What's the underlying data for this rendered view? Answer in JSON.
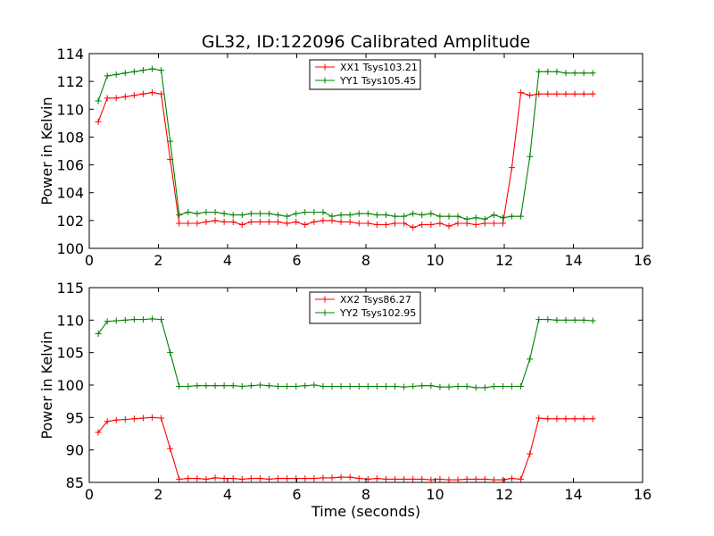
{
  "figure": {
    "title": "GL32, ID:122096 Calibrated Amplitude"
  },
  "chart_data": [
    {
      "type": "line",
      "title": "GL32, ID:122096 Calibrated Amplitude",
      "xlabel": "",
      "ylabel": "Power in Kelvin",
      "xlim": [
        0,
        16
      ],
      "ylim": [
        100,
        114
      ],
      "xticks": [
        "0",
        "2",
        "4",
        "6",
        "8",
        "10",
        "12",
        "14",
        "16"
      ],
      "yticks": [
        "100",
        "102",
        "104",
        "106",
        "108",
        "110",
        "112",
        "114"
      ],
      "grid": false,
      "legend_position": "top-center",
      "x": [
        0.26,
        0.52,
        0.78,
        1.04,
        1.3,
        1.56,
        1.82,
        2.08,
        2.34,
        2.6,
        2.86,
        3.12,
        3.38,
        3.64,
        3.9,
        4.16,
        4.42,
        4.68,
        4.94,
        5.2,
        5.46,
        5.72,
        5.98,
        6.24,
        6.5,
        6.76,
        7.02,
        7.28,
        7.54,
        7.8,
        8.06,
        8.32,
        8.58,
        8.84,
        9.1,
        9.36,
        9.62,
        9.88,
        10.14,
        10.4,
        10.66,
        10.92,
        11.18,
        11.44,
        11.7,
        11.96,
        12.22,
        12.48,
        12.74,
        13.0,
        13.26,
        13.52,
        13.78,
        14.04,
        14.3,
        14.56
      ],
      "series": [
        {
          "name": "XX1 Tsys103.21",
          "color": "#ff0000",
          "values": [
            109.1,
            110.8,
            110.8,
            110.9,
            111.0,
            111.1,
            111.2,
            111.1,
            106.4,
            101.8,
            101.8,
            101.8,
            101.9,
            102.0,
            101.9,
            101.9,
            101.7,
            101.9,
            101.9,
            101.9,
            101.9,
            101.8,
            101.9,
            101.7,
            101.9,
            102.0,
            102.0,
            101.9,
            101.9,
            101.8,
            101.8,
            101.7,
            101.7,
            101.8,
            101.8,
            101.5,
            101.7,
            101.7,
            101.8,
            101.6,
            101.8,
            101.8,
            101.7,
            101.8,
            101.8,
            101.8,
            105.8,
            111.2,
            111.0,
            111.1,
            111.1,
            111.1,
            111.1,
            111.1,
            111.1,
            111.1
          ]
        },
        {
          "name": "YY1 Tsys105.45",
          "color": "#008000",
          "values": [
            110.6,
            112.4,
            112.5,
            112.6,
            112.7,
            112.8,
            112.9,
            112.8,
            107.7,
            102.4,
            102.6,
            102.5,
            102.6,
            102.6,
            102.5,
            102.4,
            102.4,
            102.5,
            102.5,
            102.5,
            102.4,
            102.3,
            102.5,
            102.6,
            102.6,
            102.6,
            102.3,
            102.4,
            102.4,
            102.5,
            102.5,
            102.4,
            102.4,
            102.3,
            102.3,
            102.5,
            102.4,
            102.5,
            102.3,
            102.3,
            102.3,
            102.1,
            102.2,
            102.1,
            102.4,
            102.2,
            102.3,
            102.3,
            106.6,
            112.7,
            112.7,
            112.7,
            112.6,
            112.6,
            112.6,
            112.6
          ]
        }
      ]
    },
    {
      "type": "line",
      "title": "",
      "xlabel": "Time (seconds)",
      "ylabel": "Power in Kelvin",
      "xlim": [
        0,
        16
      ],
      "ylim": [
        85,
        115
      ],
      "xticks": [
        "0",
        "2",
        "4",
        "6",
        "8",
        "10",
        "12",
        "14",
        "16"
      ],
      "yticks": [
        "85",
        "90",
        "95",
        "100",
        "105",
        "110",
        "115"
      ],
      "grid": false,
      "legend_position": "top-center",
      "x": [
        0.26,
        0.52,
        0.78,
        1.04,
        1.3,
        1.56,
        1.82,
        2.08,
        2.34,
        2.6,
        2.86,
        3.12,
        3.38,
        3.64,
        3.9,
        4.16,
        4.42,
        4.68,
        4.94,
        5.2,
        5.46,
        5.72,
        5.98,
        6.24,
        6.5,
        6.76,
        7.02,
        7.28,
        7.54,
        7.8,
        8.06,
        8.32,
        8.58,
        8.84,
        9.1,
        9.36,
        9.62,
        9.88,
        10.14,
        10.4,
        10.66,
        10.92,
        11.18,
        11.44,
        11.7,
        11.96,
        12.22,
        12.48,
        12.74,
        13.0,
        13.26,
        13.52,
        13.78,
        14.04,
        14.3,
        14.56
      ],
      "series": [
        {
          "name": "XX2 Tsys86.27",
          "color": "#ff0000",
          "values": [
            92.7,
            94.4,
            94.6,
            94.7,
            94.8,
            94.9,
            95.0,
            94.9,
            90.2,
            85.5,
            85.6,
            85.6,
            85.5,
            85.7,
            85.6,
            85.6,
            85.5,
            85.6,
            85.6,
            85.5,
            85.6,
            85.6,
            85.6,
            85.6,
            85.6,
            85.7,
            85.7,
            85.8,
            85.8,
            85.6,
            85.5,
            85.6,
            85.5,
            85.5,
            85.5,
            85.5,
            85.5,
            85.4,
            85.5,
            85.4,
            85.4,
            85.5,
            85.5,
            85.5,
            85.4,
            85.4,
            85.6,
            85.5,
            89.4,
            94.9,
            94.8,
            94.8,
            94.8,
            94.8,
            94.8,
            94.8
          ]
        },
        {
          "name": "YY2 Tsys102.95",
          "color": "#008000",
          "values": [
            107.9,
            109.8,
            109.9,
            110.0,
            110.1,
            110.1,
            110.2,
            110.1,
            105.0,
            99.8,
            99.8,
            99.9,
            99.9,
            99.9,
            99.9,
            99.9,
            99.8,
            99.9,
            100.0,
            99.9,
            99.8,
            99.8,
            99.8,
            99.9,
            100.0,
            99.8,
            99.8,
            99.8,
            99.8,
            99.8,
            99.8,
            99.8,
            99.8,
            99.8,
            99.7,
            99.8,
            99.9,
            99.9,
            99.7,
            99.7,
            99.8,
            99.8,
            99.6,
            99.6,
            99.8,
            99.8,
            99.8,
            99.8,
            104.0,
            110.1,
            110.1,
            110.0,
            110.0,
            110.0,
            110.0,
            109.9
          ]
        }
      ]
    }
  ]
}
